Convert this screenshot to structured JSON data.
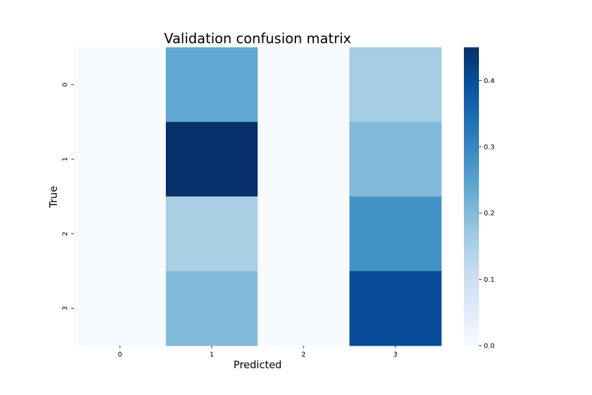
{
  "chart_data": {
    "type": "heatmap",
    "title": "Validation confusion matrix",
    "xlabel": "Predicted",
    "ylabel": "True",
    "x_categories": [
      "0",
      "1",
      "2",
      "3"
    ],
    "y_categories": [
      "0",
      "1",
      "2",
      "3"
    ],
    "values": [
      [
        0.0,
        0.24,
        0.0,
        0.16
      ],
      [
        0.0,
        0.45,
        0.0,
        0.2
      ],
      [
        0.0,
        0.15,
        0.0,
        0.28
      ],
      [
        0.0,
        0.2,
        0.0,
        0.4
      ]
    ],
    "colormap": "Blues",
    "colorbar": {
      "range": [
        0.0,
        0.45
      ],
      "ticks": [
        0.0,
        0.1,
        0.2,
        0.3,
        0.4
      ],
      "tick_labels": [
        "0.0",
        "0.1",
        "0.2",
        "0.3",
        "0.4"
      ]
    }
  }
}
